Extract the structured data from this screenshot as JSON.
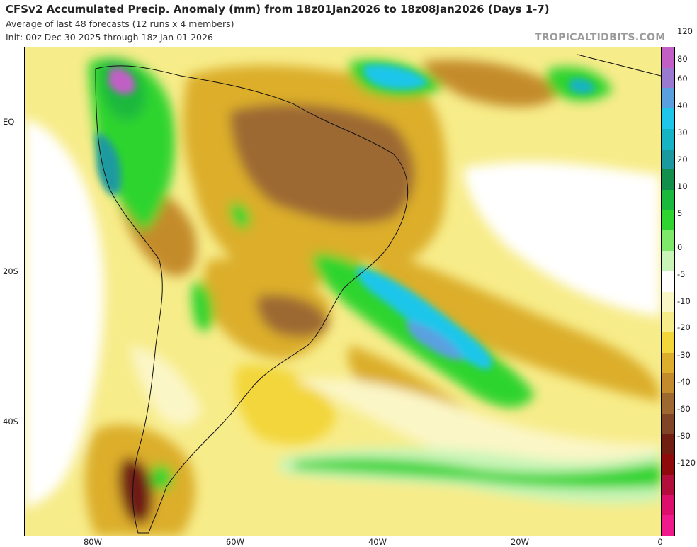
{
  "header": {
    "title": "CFSv2 Accumulated Precip. Anomaly (mm) from 18z01Jan2026 to 18z08Jan2026 (Days 1-7)",
    "subtitle": "Average of last 48 forecasts (12 runs x 4 members)",
    "init": "Init: 00z Dec 30 2025 through 18z Jan 01 2026",
    "brand": "TROPICALTIDBITS.COM"
  },
  "axes": {
    "lat_labels": [
      "EQ",
      "20S",
      "40S"
    ],
    "lon_labels": [
      "80W",
      "60W",
      "40W",
      "20W",
      "0"
    ]
  },
  "colorbar": {
    "labels": [
      "120",
      "80",
      "60",
      "40",
      "30",
      "20",
      "10",
      "5",
      "0",
      "-5",
      "-10",
      "-20",
      "-30",
      "-40",
      "-60",
      "-80",
      "-120"
    ],
    "colors": [
      "#c25fc7",
      "#9a7ad0",
      "#5aa0e0",
      "#1ec6ea",
      "#16b3c4",
      "#1a9aa0",
      "#128f4a",
      "#1ab83c",
      "#2fd42f",
      "#7ee86a",
      "#c9f5b8",
      "#ffffff",
      "#fbf6c6",
      "#f7ec8a",
      "#f3d63a",
      "#dcae2c",
      "#c48b2c",
      "#9d6930",
      "#7f4526",
      "#701e12",
      "#8f0a0a",
      "#b30d3c",
      "#dd0f6c",
      "#f01a8c"
    ]
  },
  "map": {
    "region": "South America and South Atlantic"
  }
}
